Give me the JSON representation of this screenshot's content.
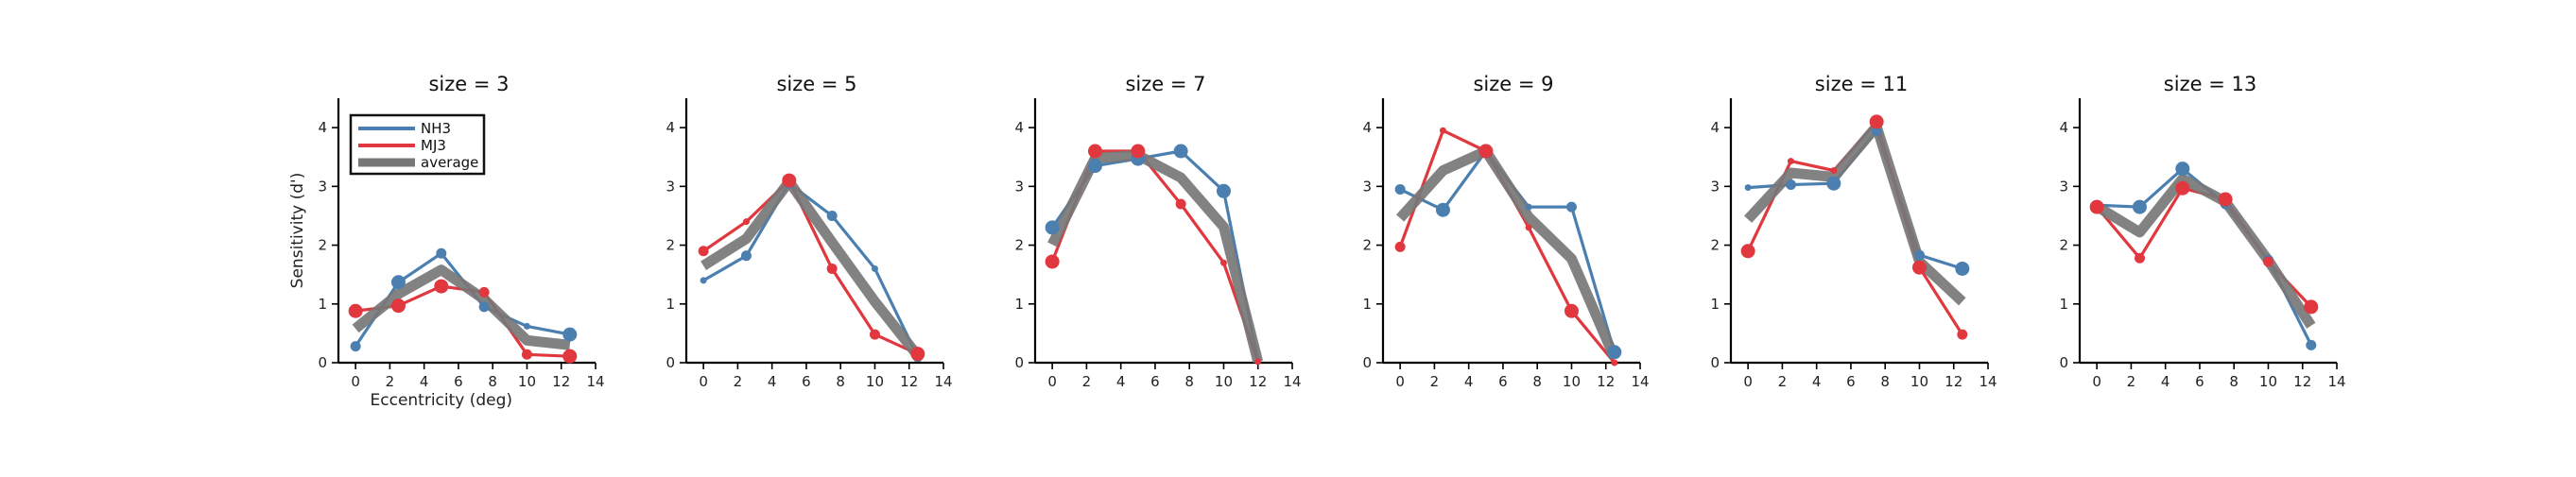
{
  "chart_data": {
    "type": "line",
    "xlabel": "Eccentricity (deg)",
    "ylabel": "Sensitivity (d')",
    "xlim": [
      -1,
      14
    ],
    "ylim": [
      0,
      4.5
    ],
    "xticks": [
      0,
      2,
      4,
      6,
      8,
      10,
      12,
      14
    ],
    "yticks": [
      0,
      1,
      2,
      3,
      4
    ],
    "legend": {
      "placement": "top-left",
      "entries": [
        "NH3",
        "MJ3",
        "average"
      ]
    },
    "colors": {
      "NH3": "#4a7fb0",
      "MJ3": "#e0383e",
      "average": "#777777"
    },
    "panels": [
      {
        "title": "size = 3",
        "series": [
          {
            "name": "NH3",
            "x": [
              0,
              2.5,
              5,
              7.5,
              10,
              12.5
            ],
            "y": [
              0.28,
              1.37,
              1.86,
              0.95,
              0.62,
              0.48
            ],
            "marker_size": [
              2,
              3,
              2,
              2,
              1,
              3
            ]
          },
          {
            "name": "MJ3",
            "x": [
              0,
              2.5,
              5,
              7.5,
              10,
              12.5
            ],
            "y": [
              0.88,
              0.97,
              1.3,
              1.2,
              0.14,
              0.11
            ],
            "marker_size": [
              3,
              3,
              3,
              2,
              2,
              3
            ]
          },
          {
            "name": "average",
            "x": [
              0,
              2.5,
              5,
              7.5,
              10,
              12.5
            ],
            "y": [
              0.58,
              1.17,
              1.58,
              1.08,
              0.38,
              0.3
            ]
          }
        ]
      },
      {
        "title": "size = 5",
        "series": [
          {
            "name": "NH3",
            "x": [
              0,
              2.5,
              5,
              7.5,
              10,
              12.5
            ],
            "y": [
              1.4,
              1.82,
              3.05,
              2.5,
              1.6,
              0.1
            ],
            "marker_size": [
              1,
              2,
              2,
              2,
              1,
              2
            ]
          },
          {
            "name": "MJ3",
            "x": [
              0,
              2.5,
              5,
              7.5,
              10,
              12.5
            ],
            "y": [
              1.9,
              2.4,
              3.1,
              1.6,
              0.48,
              0.15
            ],
            "marker_size": [
              2,
              1,
              3,
              2,
              2,
              3
            ]
          },
          {
            "name": "average",
            "x": [
              0,
              2.5,
              5,
              7.5,
              10,
              12.5
            ],
            "y": [
              1.65,
              2.11,
              3.08,
              2.05,
              1.04,
              0.12
            ]
          }
        ]
      },
      {
        "title": "size = 7",
        "series": [
          {
            "name": "NH3",
            "x": [
              0,
              2.5,
              5,
              7.5,
              10,
              12
            ],
            "y": [
              2.3,
              3.35,
              3.47,
              3.6,
              2.92,
              0.02
            ],
            "marker_size": [
              3,
              3,
              3,
              3,
              3,
              1
            ]
          },
          {
            "name": "MJ3",
            "x": [
              0,
              2.5,
              5,
              7.5,
              10,
              12
            ],
            "y": [
              1.72,
              3.6,
              3.6,
              2.7,
              1.7,
              0.02
            ],
            "marker_size": [
              3,
              3,
              3,
              2,
              1,
              1
            ]
          },
          {
            "name": "average",
            "x": [
              0,
              2.5,
              5,
              7.5,
              10,
              12
            ],
            "y": [
              2.01,
              3.48,
              3.53,
              3.15,
              2.31,
              0.02
            ]
          }
        ]
      },
      {
        "title": "size = 9",
        "series": [
          {
            "name": "NH3",
            "x": [
              0,
              2.5,
              5,
              7.5,
              10,
              12.5
            ],
            "y": [
              2.95,
              2.6,
              3.6,
              2.65,
              2.65,
              0.18
            ],
            "marker_size": [
              2,
              3,
              3,
              1,
              2,
              3
            ]
          },
          {
            "name": "MJ3",
            "x": [
              0,
              2.5,
              5,
              7.5,
              10,
              12.5
            ],
            "y": [
              1.97,
              3.95,
              3.6,
              2.3,
              0.88,
              0.0
            ],
            "marker_size": [
              2,
              1,
              3,
              1,
              3,
              1
            ]
          },
          {
            "name": "average",
            "x": [
              0,
              2.5,
              5,
              7.5,
              10,
              12.5
            ],
            "y": [
              2.46,
              3.27,
              3.6,
              2.48,
              1.77,
              0.09
            ]
          }
        ]
      },
      {
        "title": "size = 11",
        "series": [
          {
            "name": "NH3",
            "x": [
              0,
              2.5,
              5,
              7.5,
              10,
              12.5
            ],
            "y": [
              2.98,
              3.03,
              3.05,
              3.95,
              1.83,
              1.6
            ],
            "marker_size": [
              1,
              2,
              3,
              2,
              2,
              3
            ]
          },
          {
            "name": "MJ3",
            "x": [
              0,
              2.5,
              5,
              7.5,
              10,
              12.5
            ],
            "y": [
              1.9,
              3.43,
              3.27,
              4.1,
              1.62,
              0.48
            ],
            "marker_size": [
              3,
              1,
              1,
              3,
              3,
              2
            ]
          },
          {
            "name": "average",
            "x": [
              0,
              2.5,
              5,
              7.5,
              10,
              12.5
            ],
            "y": [
              2.44,
              3.23,
              3.16,
              4.02,
              1.72,
              1.04
            ]
          }
        ]
      },
      {
        "title": "size = 13",
        "series": [
          {
            "name": "NH3",
            "x": [
              0,
              2.5,
              5,
              7.5,
              10,
              12.5
            ],
            "y": [
              2.68,
              2.65,
              3.3,
              2.7,
              1.75,
              0.3
            ],
            "marker_size": [
              2,
              3,
              3,
              2,
              2,
              2
            ]
          },
          {
            "name": "MJ3",
            "x": [
              0,
              2.5,
              5,
              7.5,
              10,
              12.5
            ],
            "y": [
              2.65,
              1.78,
              2.97,
              2.78,
              1.72,
              0.95
            ],
            "marker_size": [
              3,
              2,
              3,
              3,
              2,
              3
            ]
          },
          {
            "name": "average",
            "x": [
              0,
              2.5,
              5,
              7.5,
              10,
              12.5
            ],
            "y": [
              2.66,
              2.22,
              3.13,
              2.74,
              1.74,
              0.63
            ]
          }
        ]
      }
    ]
  }
}
